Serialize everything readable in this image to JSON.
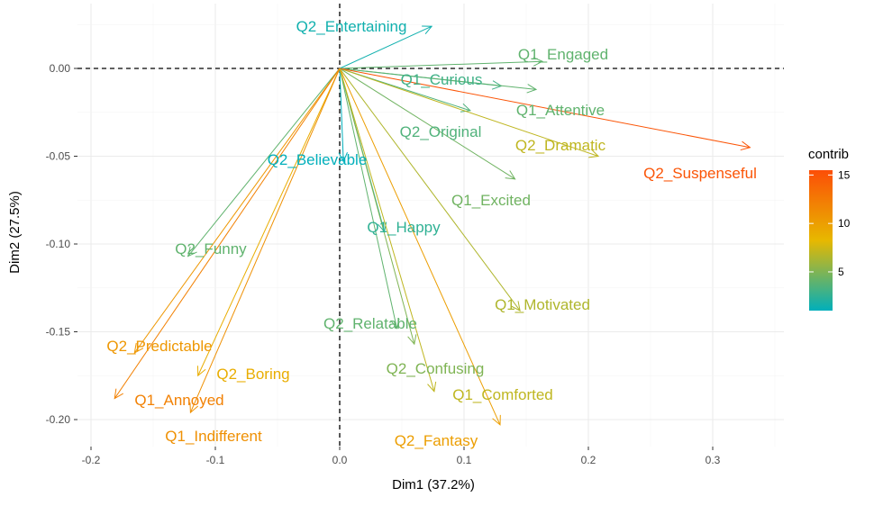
{
  "chart_data": {
    "type": "scatter",
    "subtype": "pca-variable-arrows",
    "xlabel": "Dim1 (37.2%)",
    "ylabel": "Dim2 (27.5%)",
    "xlim": [
      -0.2,
      0.35
    ],
    "ylim": [
      -0.21,
      0.03
    ],
    "x_ticks": [
      -0.2,
      -0.1,
      0.0,
      0.1,
      0.2,
      0.3
    ],
    "x_tick_labels": [
      "-0.2",
      "-0.1",
      "0.0",
      "0.1",
      "0.2",
      "0.3"
    ],
    "y_ticks": [
      0.0,
      -0.05,
      -0.1,
      -0.15,
      -0.2
    ],
    "y_tick_labels": [
      "0.00",
      "-0.05",
      "-0.10",
      "-0.15",
      "-0.20"
    ],
    "grid": true,
    "reference_lines": "dashed at x=0 and y=0",
    "legend": {
      "title": "contrib",
      "placement": "right",
      "type": "gradient",
      "range": [
        1,
        15.5
      ],
      "ticks": [
        5,
        10,
        15
      ],
      "tick_labels": [
        "5",
        "10",
        "15"
      ],
      "colors": [
        "#00AFBB",
        "#E7B800",
        "#FC4E07"
      ]
    },
    "variables": [
      {
        "label": "Q2_Entertaining",
        "x": 0.074,
        "y": 0.024,
        "contrib": 1.5
      },
      {
        "label": "Q1_Engaged",
        "x": 0.163,
        "y": 0.004,
        "contrib": 4.0
      },
      {
        "label": "Q1_Curious",
        "x": 0.13,
        "y": -0.01,
        "contrib": 3.0
      },
      {
        "label": "Q1_Attentive",
        "x": 0.158,
        "y": -0.012,
        "contrib": 4.0
      },
      {
        "label": "Q2_Original",
        "x": 0.105,
        "y": -0.024,
        "contrib": 3.5
      },
      {
        "label": "Q2_Dramatic",
        "x": 0.208,
        "y": -0.05,
        "contrib": 7.0
      },
      {
        "label": "Q2_Suspenseful",
        "x": 0.33,
        "y": -0.045,
        "contrib": 15.0
      },
      {
        "label": "Q2_Believable",
        "x": 0.003,
        "y": -0.053,
        "contrib": 1.0
      },
      {
        "label": "Q1_Excited",
        "x": 0.141,
        "y": -0.063,
        "contrib": 4.5
      },
      {
        "label": "Q1_Happy",
        "x": 0.036,
        "y": -0.093,
        "contrib": 2.5
      },
      {
        "label": "Q2_Funny",
        "x": -0.122,
        "y": -0.107,
        "contrib": 4.0
      },
      {
        "label": "Q1_Motivated",
        "x": 0.145,
        "y": -0.138,
        "contrib": 6.5
      },
      {
        "label": "Q2_Relatable",
        "x": 0.046,
        "y": -0.148,
        "contrib": 4.0
      },
      {
        "label": "Q2_Predictable",
        "x": -0.165,
        "y": -0.162,
        "contrib": 10.5
      },
      {
        "label": "Q2_Boring",
        "x": -0.114,
        "y": -0.175,
        "contrib": 9.0
      },
      {
        "label": "Q2_Confusing",
        "x": 0.06,
        "y": -0.157,
        "contrib": 5.0
      },
      {
        "label": "Q1_Annoyed",
        "x": -0.181,
        "y": -0.188,
        "contrib": 12.0
      },
      {
        "label": "Q1_Comforted",
        "x": 0.076,
        "y": -0.184,
        "contrib": 7.0
      },
      {
        "label": "Q1_Indifferent",
        "x": -0.12,
        "y": -0.196,
        "contrib": 11.0
      },
      {
        "label": "Q2_Fantasy",
        "x": 0.129,
        "y": -0.203,
        "contrib": 10.0
      }
    ]
  }
}
